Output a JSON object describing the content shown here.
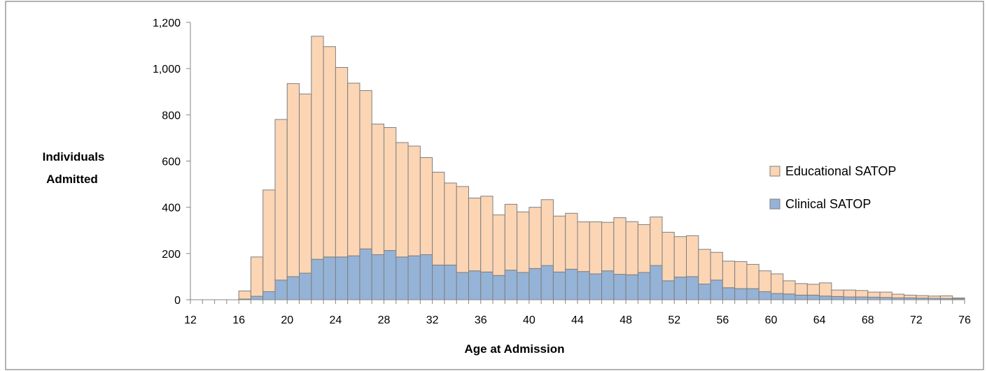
{
  "chart_data": {
    "type": "bar",
    "stacked": true,
    "title": "",
    "xlabel": "Age at Admission",
    "ylabel": "Individuals Admitted",
    "ylim": [
      0,
      1200
    ],
    "xlim": [
      12,
      76
    ],
    "y_ticks": [
      0,
      200,
      400,
      600,
      800,
      1000,
      1200
    ],
    "y_tick_labels": [
      "0",
      "200",
      "400",
      "600",
      "800",
      "1,000",
      "1,200"
    ],
    "x_ticks": [
      12,
      16,
      20,
      24,
      28,
      32,
      36,
      40,
      44,
      48,
      52,
      56,
      60,
      64,
      68,
      72,
      76
    ],
    "x_tick_labels": [
      "12",
      "16",
      "20",
      "24",
      "28",
      "32",
      "36",
      "40",
      "44",
      "48",
      "52",
      "56",
      "60",
      "64",
      "68",
      "72",
      "76"
    ],
    "grid": false,
    "legend_position": "right",
    "x": [
      12,
      13,
      14,
      15,
      16,
      17,
      18,
      19,
      20,
      21,
      22,
      23,
      24,
      25,
      26,
      27,
      28,
      29,
      30,
      31,
      32,
      33,
      34,
      35,
      36,
      37,
      38,
      39,
      40,
      41,
      42,
      43,
      44,
      45,
      46,
      47,
      48,
      49,
      50,
      51,
      52,
      53,
      54,
      55,
      56,
      57,
      58,
      59,
      60,
      61,
      62,
      63,
      64,
      65,
      66,
      67,
      68,
      69,
      70,
      71,
      72,
      73,
      74,
      75
    ],
    "series": [
      {
        "name": "Clinical SATOP",
        "color": "#95B3D7",
        "values": [
          0,
          0,
          0,
          0,
          3,
          15,
          35,
          85,
          100,
          115,
          175,
          185,
          185,
          190,
          220,
          195,
          213,
          185,
          190,
          195,
          150,
          150,
          118,
          125,
          120,
          105,
          128,
          118,
          135,
          148,
          120,
          132,
          122,
          112,
          125,
          110,
          108,
          118,
          148,
          82,
          98,
          100,
          68,
          85,
          52,
          48,
          48,
          35,
          27,
          25,
          20,
          20,
          16,
          14,
          12,
          12,
          11,
          10,
          8,
          8,
          7,
          6,
          5,
          4
        ]
      },
      {
        "name": "Educational SATOP",
        "color": "#FCD5B4",
        "values": [
          0,
          0,
          0,
          0,
          35,
          170,
          440,
          695,
          835,
          775,
          965,
          910,
          820,
          747,
          685,
          565,
          532,
          495,
          475,
          420,
          402,
          355,
          372,
          315,
          328,
          262,
          285,
          262,
          265,
          285,
          242,
          242,
          215,
          225,
          210,
          245,
          230,
          207,
          210,
          210,
          175,
          177,
          150,
          120,
          115,
          117,
          105,
          90,
          85,
          57,
          50,
          47,
          57,
          28,
          30,
          28,
          22,
          23,
          16,
          12,
          11,
          10,
          12,
          4
        ]
      }
    ]
  }
}
